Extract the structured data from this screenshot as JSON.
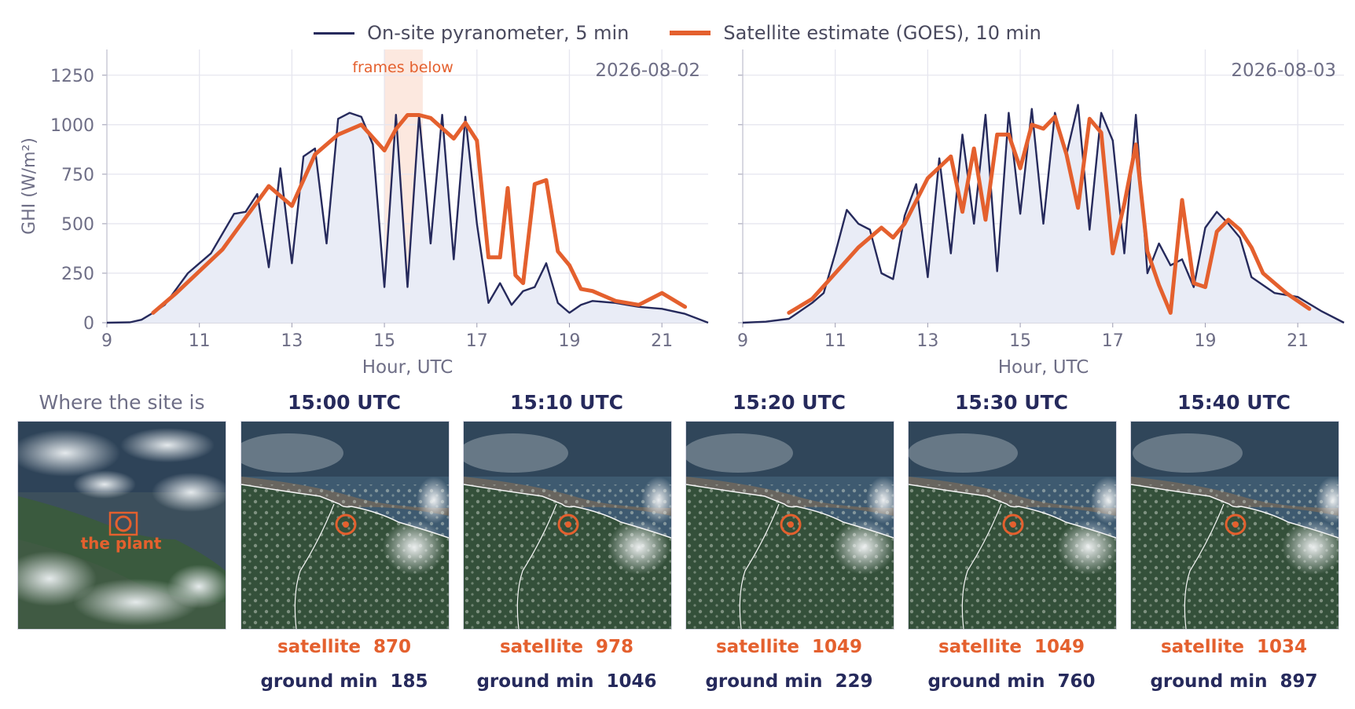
{
  "legend": {
    "ground": "On-site pyranometer, 5 min",
    "satellite": "Satellite estimate (GOES), 10 min"
  },
  "colors": {
    "ground": "#262a5c",
    "satellite": "#e4602e",
    "fill": "#e9ecf6",
    "highlight": "#fce8df",
    "grid": "#e6e6ef",
    "axis_text": "#6e6e86"
  },
  "chart_data": [
    {
      "type": "line",
      "date_label": "2026-08-02",
      "annotation": "frames below",
      "highlight_x": [
        15.0,
        15.83
      ],
      "xlabel": "Hour, UTC",
      "ylabel": "GHI (W/m²)",
      "xlim": [
        9,
        22
      ],
      "ylim": [
        0,
        1380
      ],
      "xticks": [
        "9",
        "11",
        "13",
        "15",
        "17",
        "19",
        "21"
      ],
      "yticks": [
        "0",
        "250",
        "500",
        "750",
        "1000",
        "1250"
      ],
      "grid": true,
      "series": [
        {
          "name": "On-site pyranometer, 5 min",
          "x": [
            9.0,
            9.5,
            9.75,
            10.0,
            10.25,
            10.5,
            10.75,
            11.0,
            11.25,
            11.5,
            11.75,
            12.0,
            12.25,
            12.5,
            12.75,
            13.0,
            13.25,
            13.5,
            13.75,
            14.0,
            14.25,
            14.5,
            14.75,
            15.0,
            15.25,
            15.5,
            15.75,
            16.0,
            16.25,
            16.5,
            16.75,
            17.0,
            17.25,
            17.5,
            17.75,
            18.0,
            18.25,
            18.5,
            18.75,
            19.0,
            19.25,
            19.5,
            20.0,
            20.5,
            21.0,
            21.5,
            22.0
          ],
          "y": [
            0,
            2,
            15,
            50,
            90,
            170,
            250,
            300,
            350,
            450,
            550,
            560,
            650,
            280,
            780,
            300,
            840,
            880,
            400,
            1030,
            1060,
            1040,
            900,
            180,
            1050,
            180,
            1050,
            400,
            1050,
            320,
            1040,
            500,
            100,
            200,
            90,
            160,
            180,
            300,
            100,
            50,
            90,
            110,
            100,
            80,
            70,
            45,
            0
          ]
        },
        {
          "name": "Satellite estimate (GOES), 10 min",
          "x": [
            10.0,
            10.5,
            11.0,
            11.5,
            12.0,
            12.5,
            13.0,
            13.5,
            14.0,
            14.5,
            15.0,
            15.25,
            15.5,
            15.75,
            16.0,
            16.5,
            16.75,
            17.0,
            17.25,
            17.5,
            17.667,
            17.833,
            18.0,
            18.25,
            18.5,
            18.75,
            19.0,
            19.25,
            19.5,
            20.0,
            20.5,
            21.0,
            21.5
          ],
          "y": [
            50,
            150,
            260,
            370,
            530,
            690,
            590,
            850,
            950,
            1000,
            870,
            978,
            1049,
            1049,
            1034,
            930,
            1010,
            920,
            330,
            330,
            680,
            240,
            200,
            700,
            720,
            360,
            290,
            170,
            160,
            110,
            90,
            150,
            80
          ]
        }
      ]
    },
    {
      "type": "line",
      "date_label": "2026-08-03",
      "xlabel": "Hour, UTC",
      "xlim": [
        9,
        22
      ],
      "ylim": [
        0,
        1380
      ],
      "xticks": [
        "9",
        "11",
        "13",
        "15",
        "17",
        "19",
        "21"
      ],
      "grid": true,
      "series": [
        {
          "name": "On-site pyranometer, 5 min",
          "x": [
            9.0,
            9.5,
            10.0,
            10.25,
            10.5,
            10.75,
            11.0,
            11.25,
            11.5,
            11.75,
            12.0,
            12.25,
            12.5,
            12.75,
            13.0,
            13.25,
            13.5,
            13.75,
            14.0,
            14.25,
            14.5,
            14.75,
            15.0,
            15.25,
            15.5,
            15.75,
            16.0,
            16.25,
            16.5,
            16.75,
            17.0,
            17.25,
            17.5,
            17.75,
            18.0,
            18.25,
            18.5,
            18.75,
            19.0,
            19.25,
            19.5,
            19.75,
            20.0,
            20.5,
            21.0,
            21.5,
            22.0
          ],
          "y": [
            0,
            5,
            20,
            60,
            100,
            150,
            350,
            570,
            500,
            470,
            250,
            220,
            540,
            700,
            230,
            830,
            350,
            950,
            500,
            1050,
            260,
            1060,
            550,
            1080,
            500,
            1060,
            850,
            1100,
            470,
            1060,
            920,
            350,
            1050,
            250,
            400,
            290,
            320,
            180,
            480,
            560,
            500,
            430,
            230,
            150,
            130,
            60,
            0
          ]
        },
        {
          "name": "Satellite estimate (GOES), 10 min",
          "x": [
            10.0,
            10.5,
            11.0,
            11.5,
            12.0,
            12.25,
            12.5,
            13.0,
            13.5,
            13.75,
            14.0,
            14.25,
            14.5,
            14.75,
            15.0,
            15.25,
            15.5,
            15.75,
            16.0,
            16.25,
            16.5,
            16.75,
            17.0,
            17.25,
            17.5,
            17.75,
            18.0,
            18.25,
            18.5,
            18.75,
            19.0,
            19.25,
            19.5,
            19.75,
            20.0,
            20.25,
            20.5,
            20.75,
            21.0,
            21.25
          ],
          "y": [
            50,
            120,
            250,
            380,
            480,
            430,
            500,
            730,
            840,
            560,
            880,
            520,
            950,
            950,
            780,
            1000,
            980,
            1040,
            850,
            580,
            1030,
            960,
            350,
            600,
            900,
            360,
            190,
            50,
            620,
            200,
            180,
            460,
            520,
            470,
            380,
            250,
            200,
            150,
            110,
            70
          ]
        }
      ]
    }
  ],
  "frames": {
    "locator_title": "Where the site is",
    "plant_label": "the plant",
    "items": [
      {
        "time": "15:00 UTC",
        "sat_label": "satellite",
        "sat_value": "870",
        "ground_label": "ground min",
        "ground_value": "185",
        "cloud_x_shift": 0
      },
      {
        "time": "15:10 UTC",
        "sat_label": "satellite",
        "sat_value": "978",
        "ground_label": "ground min",
        "ground_value": "1046",
        "cloud_x_shift": 3
      },
      {
        "time": "15:20 UTC",
        "sat_label": "satellite",
        "sat_value": "1049",
        "ground_label": "ground min",
        "ground_value": "229",
        "cloud_x_shift": 6
      },
      {
        "time": "15:30 UTC",
        "sat_label": "satellite",
        "sat_value": "1049",
        "ground_label": "ground min",
        "ground_value": "760",
        "cloud_x_shift": 9
      },
      {
        "time": "15:40 UTC",
        "sat_label": "satellite",
        "sat_value": "1034",
        "ground_label": "ground min",
        "ground_value": "897",
        "cloud_x_shift": 12
      }
    ]
  }
}
